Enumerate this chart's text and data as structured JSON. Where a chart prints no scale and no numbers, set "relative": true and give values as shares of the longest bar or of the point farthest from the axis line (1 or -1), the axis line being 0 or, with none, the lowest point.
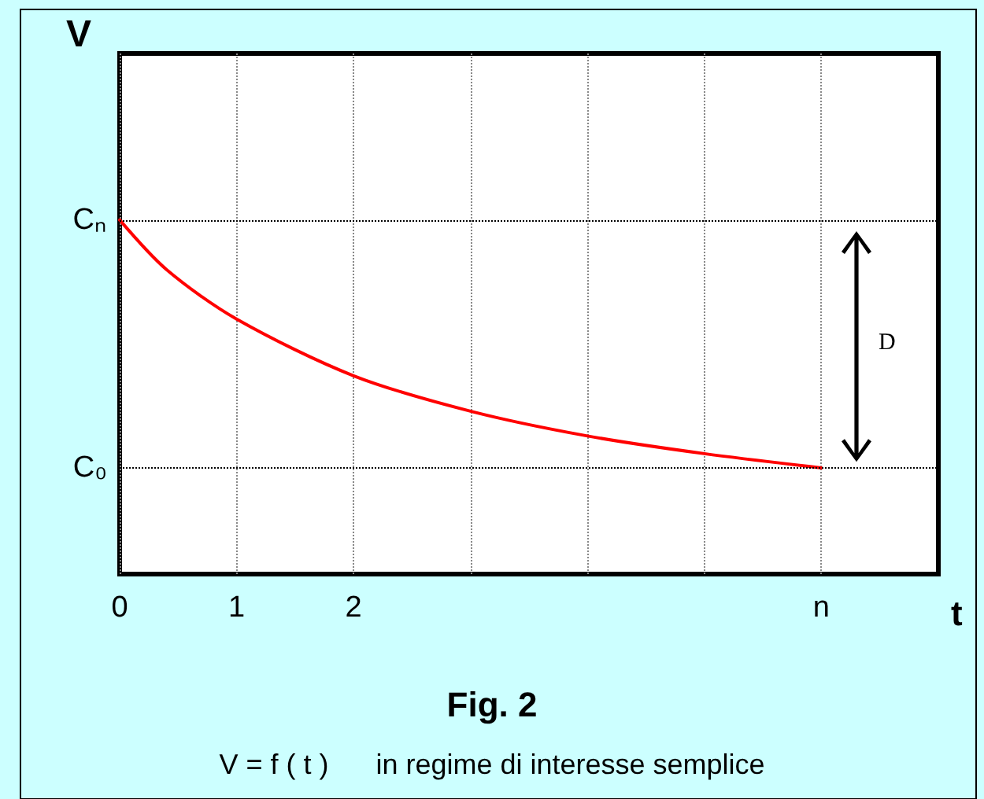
{
  "chart_data": {
    "type": "line",
    "title": "Fig. 2",
    "subtitle": "V = f ( t )      in regime di interesse semplice",
    "xlabel": "t",
    "ylabel": "V",
    "relative": true,
    "x": [
      0,
      0.4,
      1,
      2,
      3,
      4,
      5,
      6
    ],
    "series": [
      {
        "color": "#ff0000",
        "values": [
          1,
          0.86,
          0.72,
          0.56,
          0.46,
          0.39,
          0.34,
          0.3
        ]
      }
    ],
    "xlim": [
      0,
      7
    ],
    "xticks": [
      0,
      1,
      2,
      {
        "value": 3,
        "label": null
      },
      {
        "value": 4,
        "label": null
      },
      {
        "value": 5,
        "label": null
      },
      {
        "value": 6,
        "label": "n"
      }
    ],
    "grid": "x",
    "marker": "none",
    "ref_lines": [
      {
        "axis": "y",
        "value": 1,
        "label": "Cₙ",
        "line_style": "dotted"
      },
      {
        "axis": "y",
        "value": 0.3,
        "label": "C₀",
        "line_style": "dotted"
      }
    ],
    "annotations": [
      "D"
    ]
  }
}
